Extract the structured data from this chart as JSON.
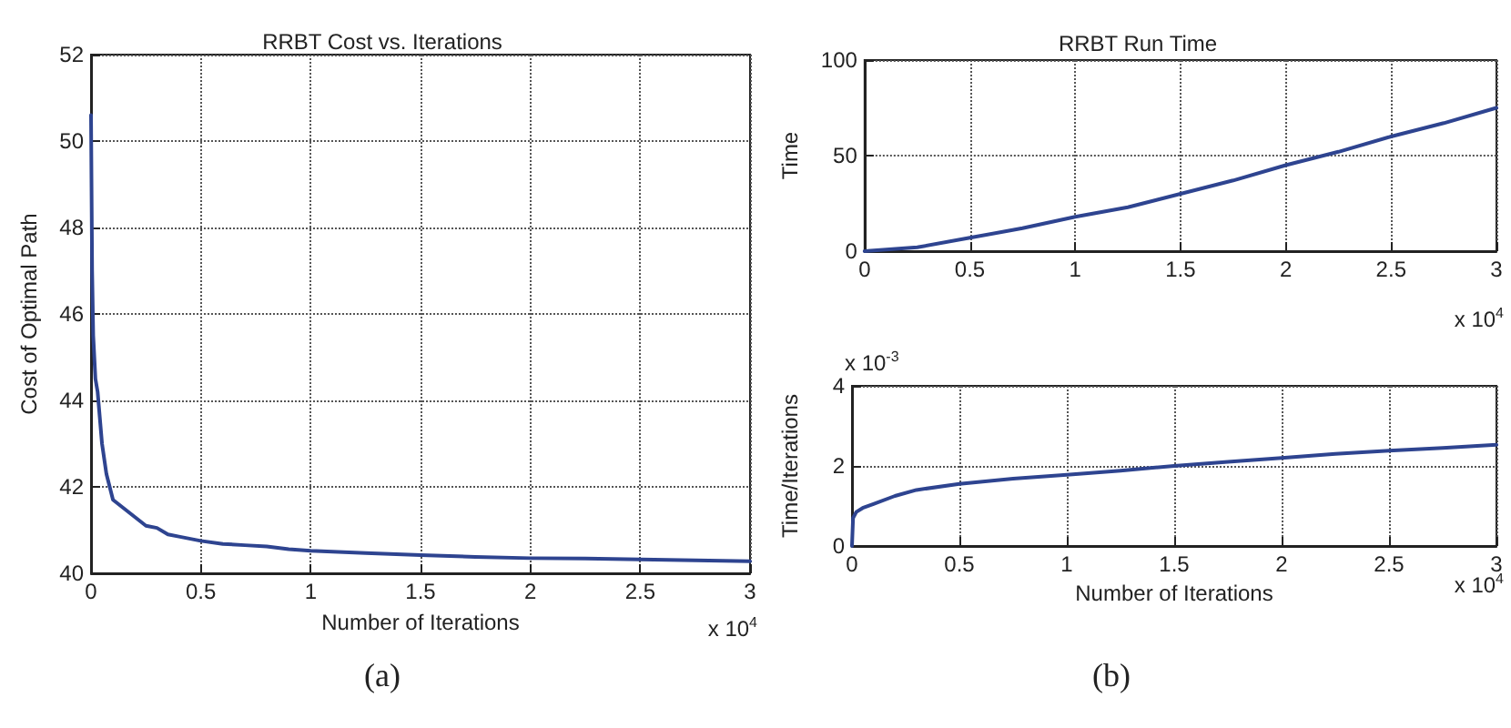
{
  "chart_data": [
    {
      "type": "line",
      "title": "RRBT Cost vs. Iterations",
      "xlabel": "Number of Iterations",
      "ylabel": "Cost of Optimal Path",
      "xlim": [
        0,
        3
      ],
      "xticks": [
        0,
        0.5,
        1,
        1.5,
        2,
        2.5,
        3
      ],
      "ylim": [
        40,
        52
      ],
      "yticks": [
        40,
        42,
        44,
        46,
        48,
        50,
        52
      ],
      "grid": true,
      "annotations": [
        "x 10$^{4}$",
        "(a)"
      ],
      "series": [
        {
          "color": "#2e4490",
          "x": [
            0,
            0.005,
            0.01,
            0.02,
            0.03,
            0.05,
            0.07,
            0.1,
            0.15,
            0.2,
            0.25,
            0.3,
            0.35,
            0.4,
            0.5,
            0.6,
            0.7,
            0.8,
            0.9,
            1.0,
            1.25,
            1.5,
            1.75,
            2.0,
            2.25,
            2.5,
            2.75,
            3.0
          ],
          "values": [
            50.6,
            47,
            45.5,
            44.5,
            44.2,
            43,
            42.3,
            41.7,
            41.5,
            41.3,
            41.1,
            41.05,
            40.9,
            40.85,
            40.75,
            40.68,
            40.65,
            40.62,
            40.56,
            40.52,
            40.47,
            40.42,
            40.38,
            40.35,
            40.34,
            40.32,
            40.3,
            40.28
          ]
        }
      ]
    },
    {
      "type": "line",
      "title": "RRBT Run Time",
      "ylabel": "Time",
      "xlim": [
        0,
        3
      ],
      "xticks": [
        0,
        0.5,
        1,
        1.5,
        2,
        2.5,
        3
      ],
      "ylim": [
        0,
        100
      ],
      "yticks": [
        0,
        50,
        100
      ],
      "grid": true,
      "annotations": [
        "x 10$^{4}$"
      ],
      "series": [
        {
          "color": "#2e4490",
          "x": [
            0,
            0.25,
            0.5,
            0.75,
            1,
            1.25,
            1.5,
            1.75,
            2,
            2.25,
            2.5,
            2.75,
            3
          ],
          "values": [
            0,
            2,
            7,
            12,
            18,
            23,
            30,
            37,
            45,
            52,
            60,
            67,
            75
          ]
        }
      ]
    },
    {
      "type": "line",
      "xlabel": "Number of Iterations",
      "ylabel": "Time/Iterations",
      "xlim": [
        0,
        3
      ],
      "xticks": [
        0,
        0.5,
        1,
        1.5,
        2,
        2.5,
        3
      ],
      "ylim": [
        0,
        4
      ],
      "yticks": [
        0,
        2,
        4
      ],
      "grid": true,
      "annotations": [
        "x 10$^{-3}$",
        "x 10$^{4}$",
        "(b)"
      ],
      "series": [
        {
          "color": "#2e4490",
          "x": [
            0,
            0.005,
            0.02,
            0.05,
            0.1,
            0.2,
            0.3,
            0.5,
            0.75,
            1,
            1.25,
            1.5,
            1.75,
            2,
            2.25,
            2.5,
            2.75,
            3
          ],
          "values": [
            0,
            0.7,
            0.85,
            0.95,
            1.05,
            1.25,
            1.4,
            1.55,
            1.68,
            1.78,
            1.88,
            2.0,
            2.1,
            2.2,
            2.3,
            2.38,
            2.45,
            2.53
          ]
        }
      ]
    }
  ]
}
